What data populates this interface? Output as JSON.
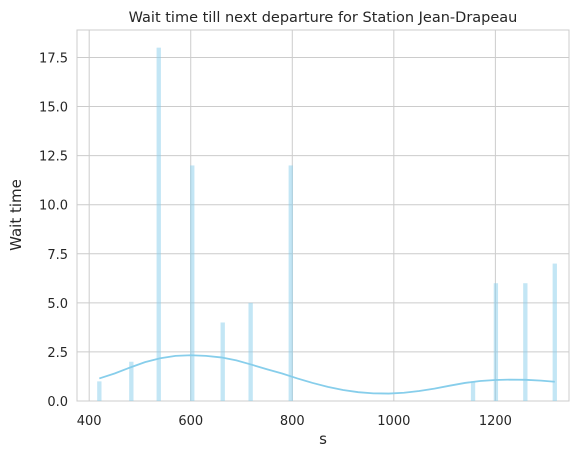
{
  "chart_data": {
    "type": "bar",
    "title": "Wait time till next departure for Station Jean-Drapeau",
    "xlabel": "s",
    "ylabel": "Wait time",
    "xlim": [
      376,
      1345
    ],
    "ylim": [
      0,
      18.9
    ],
    "x_ticks": [
      400,
      600,
      800,
      1000,
      1200
    ],
    "y_ticks": [
      0.0,
      2.5,
      5.0,
      7.5,
      10.0,
      12.5,
      15.0,
      17.5
    ],
    "x_tick_labels": [
      "400",
      "600",
      "800",
      "1000",
      "1200"
    ],
    "y_tick_labels": [
      "0.0",
      "2.5",
      "5.0",
      "7.5",
      "10.0",
      "12.5",
      "15.0",
      "17.5"
    ],
    "grid": true,
    "bar_color": "#87ceeb",
    "bar_opacity": 0.5,
    "bar_width": 8.5,
    "bars": [
      {
        "x": 420,
        "value": 1
      },
      {
        "x": 483,
        "value": 2
      },
      {
        "x": 537,
        "value": 18
      },
      {
        "x": 603,
        "value": 12
      },
      {
        "x": 663,
        "value": 4
      },
      {
        "x": 718,
        "value": 5
      },
      {
        "x": 797,
        "value": 12
      },
      {
        "x": 1156,
        "value": 1
      },
      {
        "x": 1201,
        "value": 6
      },
      {
        "x": 1259,
        "value": 6
      },
      {
        "x": 1317,
        "value": 7
      }
    ],
    "kde_color": "#87ceeb",
    "kde": {
      "x": [
        420,
        450,
        480,
        510,
        540,
        570,
        600,
        630,
        660,
        690,
        720,
        750,
        780,
        810,
        840,
        870,
        900,
        930,
        960,
        990,
        1020,
        1050,
        1080,
        1110,
        1140,
        1170,
        1200,
        1230,
        1260,
        1290,
        1317
      ],
      "y": [
        1.15,
        1.4,
        1.7,
        1.98,
        2.18,
        2.3,
        2.33,
        2.3,
        2.22,
        2.07,
        1.85,
        1.62,
        1.4,
        1.15,
        0.92,
        0.72,
        0.56,
        0.45,
        0.39,
        0.38,
        0.42,
        0.51,
        0.63,
        0.78,
        0.92,
        1.02,
        1.07,
        1.09,
        1.08,
        1.04,
        0.98
      ]
    }
  }
}
